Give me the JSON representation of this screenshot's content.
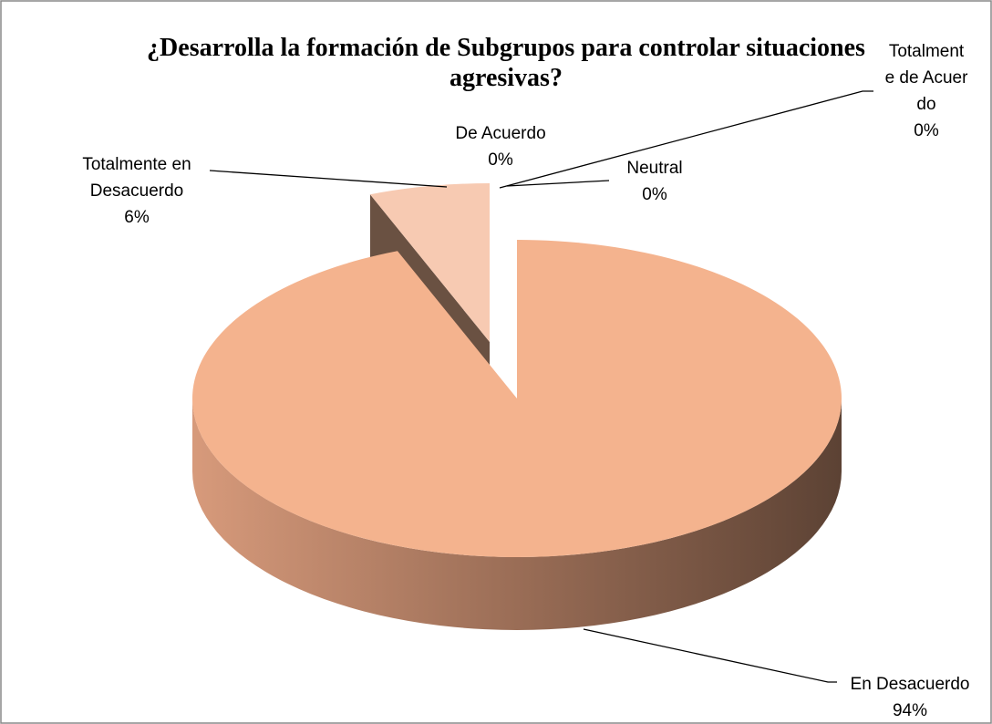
{
  "chart_data": {
    "type": "pie",
    "title": "¿Desarrolla la formación de Subgrupos para controlar situaciones agresivas?",
    "categories": [
      "Totalmente de Acuerdo",
      "De Acuerdo",
      "Neutral",
      "En Desacuerdo",
      "Totalmente en Desacuerdo"
    ],
    "values": [
      0,
      0,
      0,
      94,
      6
    ],
    "value_labels": [
      "0%",
      "0%",
      "0%",
      "94%",
      "6%"
    ],
    "colors": [
      "#f4b38e",
      "#f4b38e",
      "#f4b38e",
      "#f4b38e",
      "#f7cab2"
    ]
  }
}
